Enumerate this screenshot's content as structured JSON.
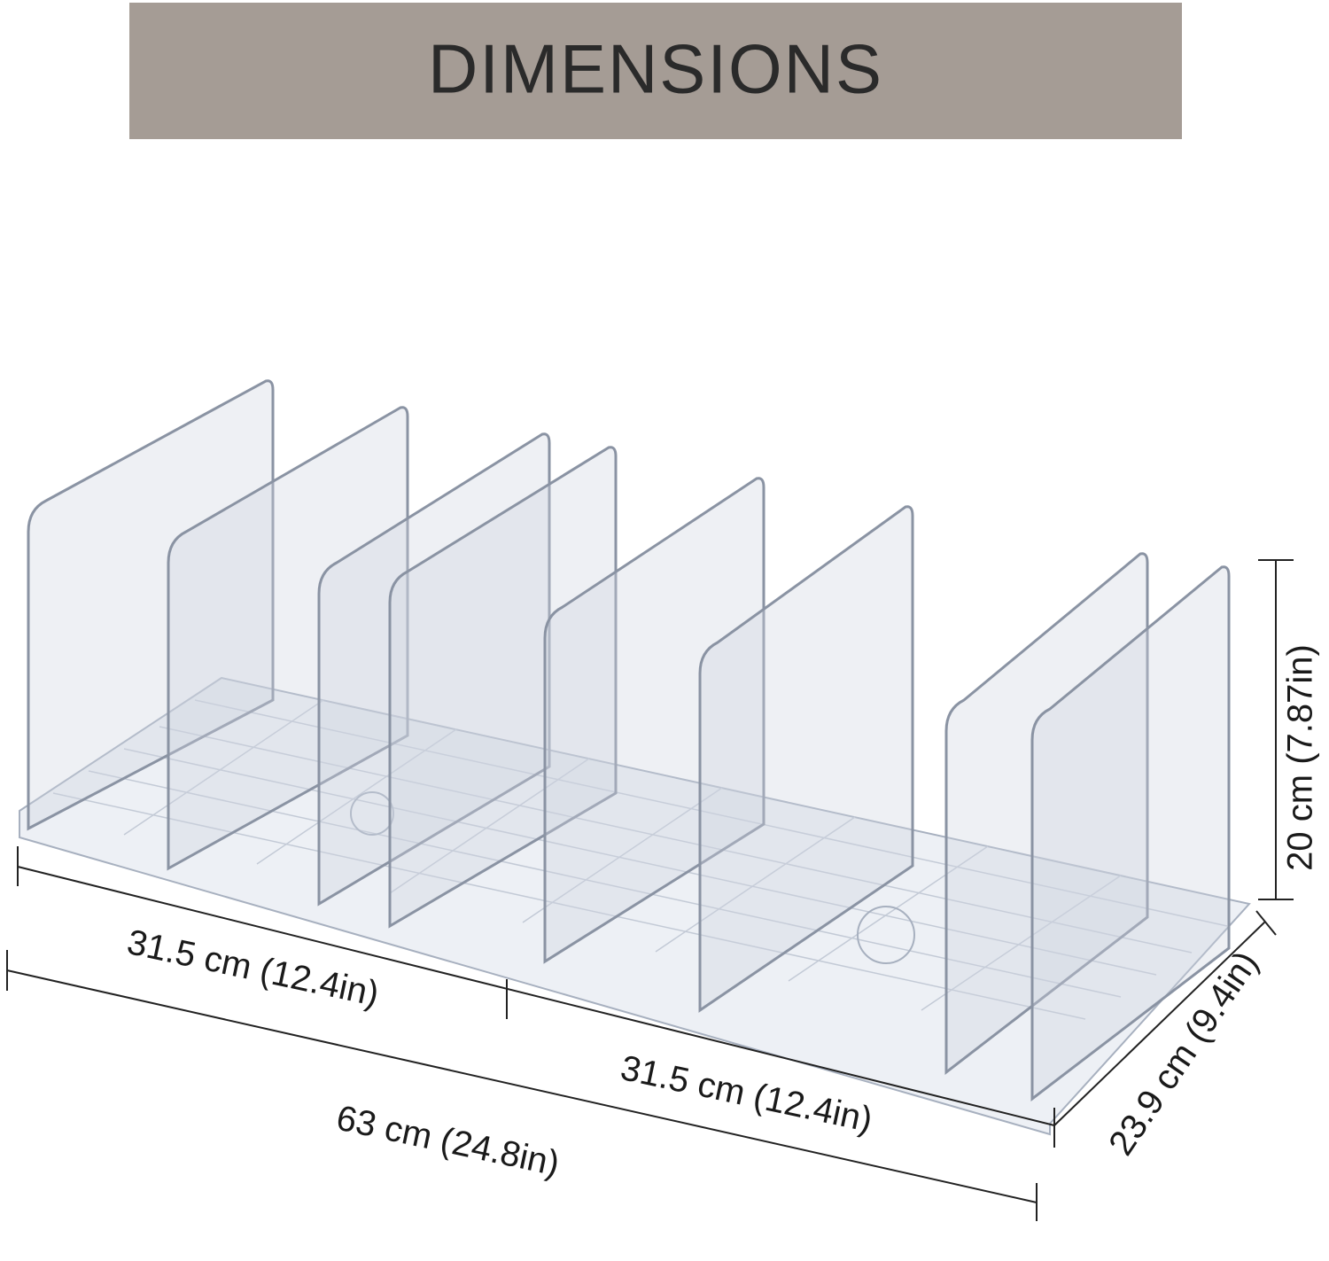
{
  "header": {
    "title": "DIMENSIONS"
  },
  "dimensions": {
    "left_length": "31.5 cm (12.4in)",
    "right_length": "31.5 cm (12.4in)",
    "total_length": "63 cm (24.8in)",
    "depth": "23.9 cm (9.4in)",
    "height": "20 cm (7.87in)"
  }
}
